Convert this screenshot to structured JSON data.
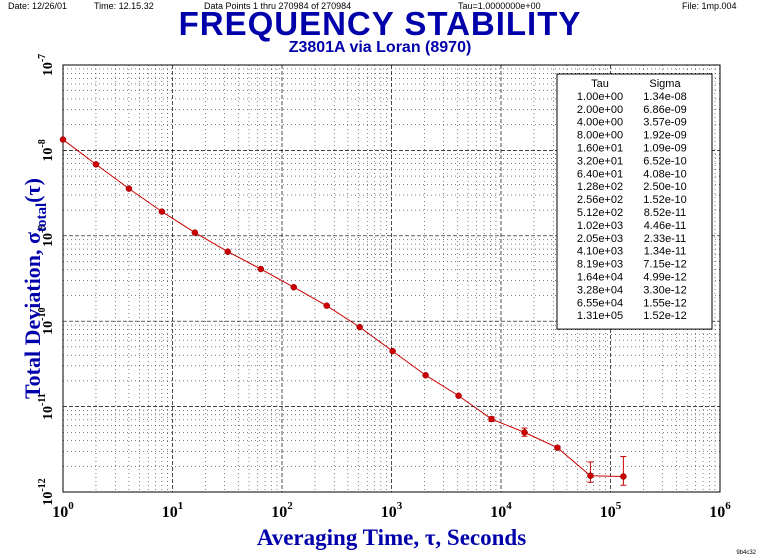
{
  "header": {
    "date": "Date: 12/26/01",
    "time": "Time: 12.15.32",
    "points": "Data Points 1 thru 270984 of 270984",
    "tau": "Tau=1.0000000e+00",
    "file": "File: 1mp.004"
  },
  "footer_code": "9b4c32",
  "chart_data": {
    "type": "scatter",
    "title": "FREQUENCY STABILITY",
    "subtitle": "Z3801A via Loran (8970)",
    "xlabel": "Averaging Time, τ, Seconds",
    "ylabel": "Total Deviation, σtotal(τ)",
    "xscale": "log",
    "yscale": "log",
    "xlim": [
      1,
      1000000
    ],
    "ylim": [
      1e-12,
      1e-07
    ],
    "grid": true,
    "series_color": "#cc0000",
    "x_tick_labels": [
      {
        "base": "10",
        "exp": "0",
        "value": 1
      },
      {
        "base": "10",
        "exp": "1",
        "value": 10
      },
      {
        "base": "10",
        "exp": "2",
        "value": 100
      },
      {
        "base": "10",
        "exp": "3",
        "value": 1000
      },
      {
        "base": "10",
        "exp": "4",
        "value": 10000
      },
      {
        "base": "10",
        "exp": "5",
        "value": 100000
      },
      {
        "base": "10",
        "exp": "6",
        "value": 1000000
      }
    ],
    "y_tick_labels": [
      {
        "base": "10",
        "exp": "-12",
        "value": 1e-12
      },
      {
        "base": "10",
        "exp": "-11",
        "value": 1e-11
      },
      {
        "base": "10",
        "exp": "-10",
        "value": 1e-10
      },
      {
        "base": "10",
        "exp": "-9",
        "value": 1e-09
      },
      {
        "base": "10",
        "exp": "-8",
        "value": 1e-08
      },
      {
        "base": "10",
        "exp": "-7",
        "value": 1e-07
      }
    ],
    "table": {
      "headers": [
        "Tau",
        "Sigma"
      ],
      "rows": [
        [
          "1.00e+00",
          "1.34e-08"
        ],
        [
          "2.00e+00",
          "6.86e-09"
        ],
        [
          "4.00e+00",
          "3.57e-09"
        ],
        [
          "8.00e+00",
          "1.92e-09"
        ],
        [
          "1.60e+01",
          "1.09e-09"
        ],
        [
          "3.20e+01",
          "6.52e-10"
        ],
        [
          "6.40e+01",
          "4.08e-10"
        ],
        [
          "1.28e+02",
          "2.50e-10"
        ],
        [
          "2.56e+02",
          "1.52e-10"
        ],
        [
          "5.12e+02",
          "8.52e-11"
        ],
        [
          "1.02e+03",
          "4.46e-11"
        ],
        [
          "2.05e+03",
          "2.33e-11"
        ],
        [
          "4.10e+03",
          "1.34e-11"
        ],
        [
          "8.19e+03",
          "7.15e-12"
        ],
        [
          "1.64e+04",
          "4.99e-12"
        ],
        [
          "3.28e+04",
          "3.30e-12"
        ],
        [
          "6.55e+04",
          "1.55e-12"
        ],
        [
          "1.31e+05",
          "1.52e-12"
        ]
      ]
    },
    "points": [
      {
        "x": 1,
        "y": 1.34e-08
      },
      {
        "x": 2,
        "y": 6.86e-09
      },
      {
        "x": 4,
        "y": 3.57e-09
      },
      {
        "x": 8,
        "y": 1.92e-09
      },
      {
        "x": 16,
        "y": 1.09e-09
      },
      {
        "x": 32,
        "y": 6.52e-10
      },
      {
        "x": 64,
        "y": 4.08e-10
      },
      {
        "x": 128,
        "y": 2.5e-10
      },
      {
        "x": 256,
        "y": 1.52e-10
      },
      {
        "x": 512,
        "y": 8.52e-11
      },
      {
        "x": 1024,
        "y": 4.46e-11
      },
      {
        "x": 2048,
        "y": 2.33e-11
      },
      {
        "x": 4096,
        "y": 1.34e-11
      },
      {
        "x": 8192,
        "y": 7.15e-12,
        "err_lo": 6.7e-12,
        "err_hi": 7.6e-12
      },
      {
        "x": 16384,
        "y": 4.99e-12,
        "err_lo": 4.5e-12,
        "err_hi": 5.6e-12
      },
      {
        "x": 32768,
        "y": 3.3e-12,
        "err_lo": 3.15e-12,
        "err_hi": 3.45e-12
      },
      {
        "x": 65536,
        "y": 1.55e-12,
        "err_lo": 1.3e-12,
        "err_hi": 2.25e-12
      },
      {
        "x": 131072,
        "y": 1.52e-12,
        "err_lo": 1.2e-12,
        "err_hi": 2.6e-12
      }
    ]
  }
}
